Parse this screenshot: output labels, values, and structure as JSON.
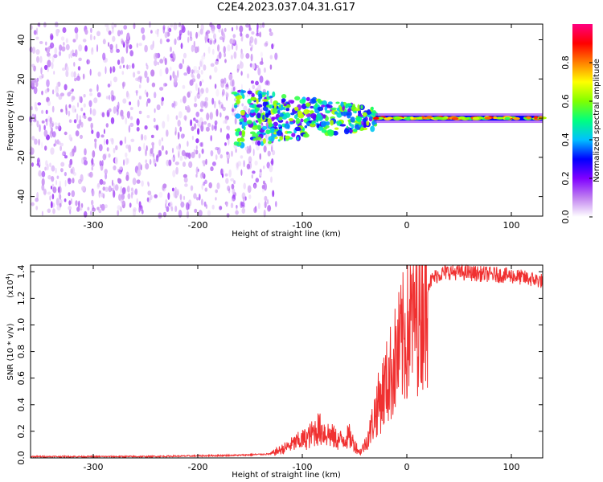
{
  "title": "C2E4.2023.037.04.31.G17",
  "chart_data": [
    {
      "type": "heatmap",
      "xlabel": "Height of straight line (km)",
      "ylabel": "Frequency (Hz)",
      "xlim": [
        -360,
        130
      ],
      "ylim": [
        -50,
        48
      ],
      "xticks": [
        -300,
        -200,
        -100,
        0,
        100
      ],
      "yticks": [
        -40,
        -20,
        0,
        20,
        40
      ],
      "colorbar": {
        "label": "Normalized spectral amplitude",
        "range": [
          0,
          1
        ],
        "ticks": [
          0.0,
          0.2,
          0.4,
          0.6,
          0.8
        ],
        "tick_labels": [
          "0.0",
          "0.2",
          "0.4",
          "0.6",
          "0.8"
        ],
        "colormap": [
          "#ffffff",
          "#c080f0",
          "#8000ff",
          "#0000ff",
          "#00c0ff",
          "#00ff80",
          "#80ff00",
          "#ffff00",
          "#ff8000",
          "#ff0000",
          "#ff0080"
        ]
      },
      "regions": [
        {
          "description": "scattered noise",
          "x_range": [
            -360,
            -125
          ],
          "y_range": [
            -50,
            48
          ],
          "amplitude": 0.12
        },
        {
          "description": "band at 0 Hz",
          "x_range": [
            -165,
            -30
          ],
          "y_range": [
            -15,
            15
          ],
          "amplitude": 0.35
        },
        {
          "description": "narrow tone at 0 Hz",
          "x_range": [
            -30,
            130
          ],
          "y_range": [
            -3,
            3
          ],
          "amplitude": 0.75
        }
      ]
    },
    {
      "type": "line",
      "xlabel": "Height of straight line (km)",
      "ylabel": "SNR (10 * v/v)",
      "y_multiplier": "(x10",
      "y_multiplier_exp": "4",
      "y_multiplier_close": ")",
      "xlim": [
        -360,
        130
      ],
      "ylim": [
        0,
        1.45
      ],
      "xticks": [
        -300,
        -200,
        -100,
        0,
        100
      ],
      "yticks": [
        0.0,
        0.2,
        0.4,
        0.6,
        0.8,
        1.0,
        1.2,
        1.4
      ],
      "ytick_labels": [
        "0.0",
        "0.2",
        "0.4",
        "0.6",
        "0.8",
        "1.0",
        "1.2",
        "1.4"
      ],
      "color": "#f03030",
      "series": [
        {
          "x": [
            -360,
            -300,
            -250,
            -200,
            -160,
            -130,
            -115,
            -105,
            -95,
            -85,
            -75,
            -65,
            -55,
            -45,
            -40,
            -35,
            -30,
            -25,
            -20,
            -15,
            -10,
            -5,
            0,
            5,
            10,
            15,
            20,
            25,
            30,
            40,
            60,
            80,
            100,
            115,
            130
          ],
          "y": [
            0.01,
            0.01,
            0.01,
            0.015,
            0.02,
            0.03,
            0.08,
            0.12,
            0.15,
            0.22,
            0.18,
            0.13,
            0.16,
            0.04,
            0.1,
            0.2,
            0.35,
            0.45,
            0.55,
            0.65,
            0.75,
            0.85,
            0.95,
            1.05,
            1.15,
            1.25,
            1.3,
            1.35,
            1.38,
            1.4,
            1.39,
            1.38,
            1.37,
            1.35,
            1.33
          ]
        }
      ]
    }
  ]
}
